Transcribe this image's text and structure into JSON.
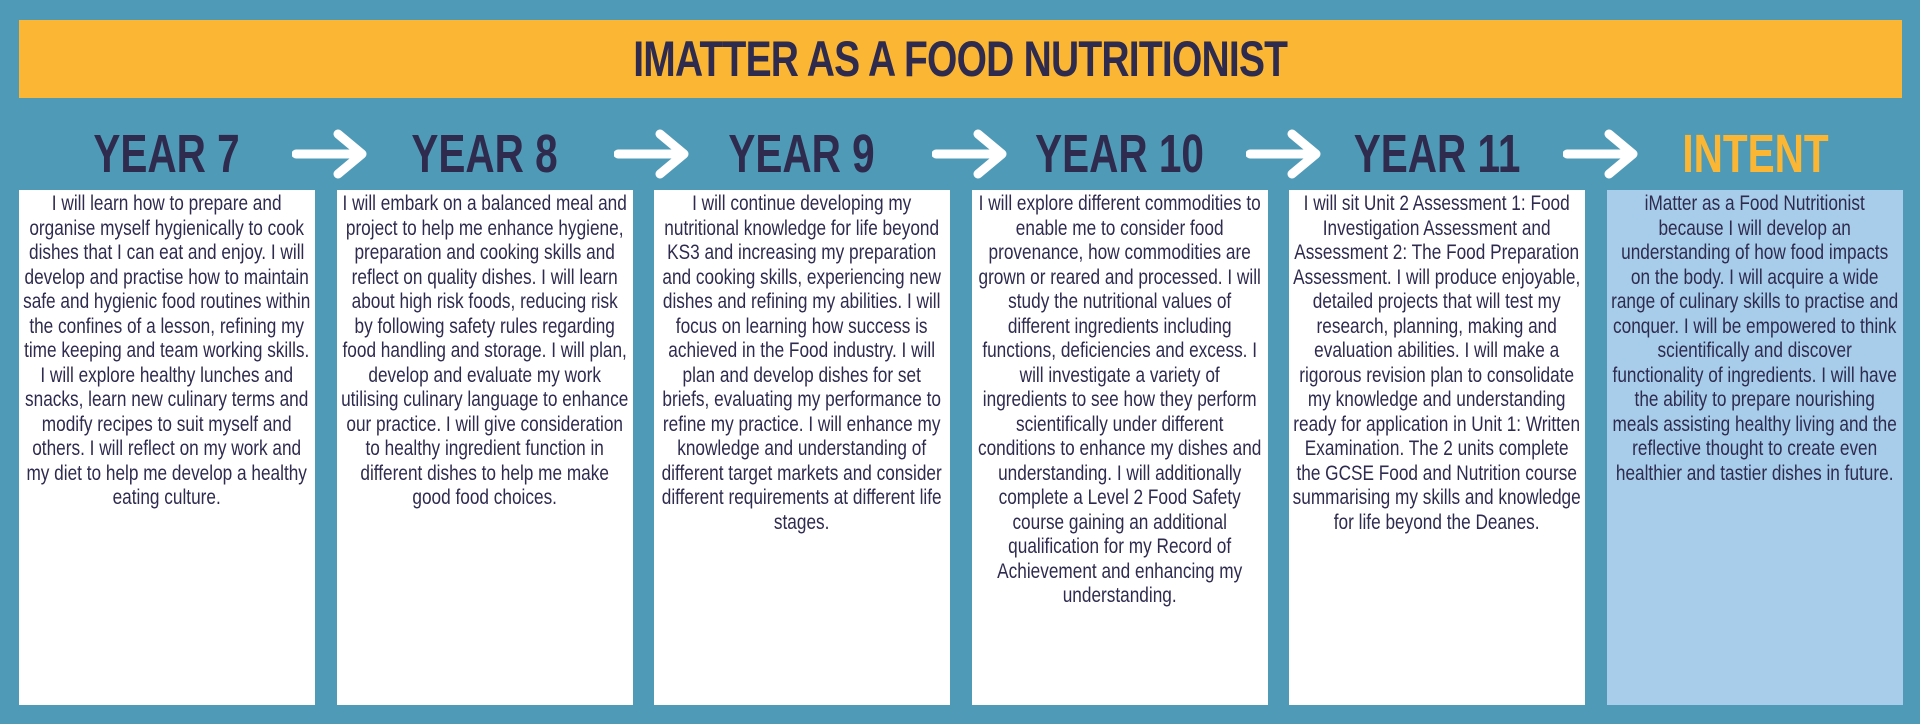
{
  "title": "IMATTER AS A FOOD NUTRITIONIST",
  "colors": {
    "background": "#4f9bb7",
    "banner": "#fbb733",
    "text": "#2f2b4f",
    "intent_card": "#a7cdea"
  },
  "columns": [
    {
      "heading": "YEAR 7",
      "text": "I will learn how to prepare and organise myself hygienically to cook dishes that I can eat and enjoy. I will develop and practise how to maintain safe and hygienic food routines within the confines of a lesson, refining my time keeping and team working skills. I will explore healthy lunches and snacks, learn new culinary terms and modify recipes to suit myself and others. I will reflect on my work and my diet to help me develop a healthy eating culture."
    },
    {
      "heading": "YEAR 8",
      "text": "I will embark on a balanced meal and project to help me enhance hygiene, preparation and cooking skills and reflect on quality dishes. I will learn about high risk foods, reducing risk by following safety rules regarding food handling and storage. I will plan, develop and evaluate my work utilising culinary language to enhance our practice.  I will give consideration to healthy ingredient function in different dishes to help me make good food choices."
    },
    {
      "heading": "YEAR 9",
      "text": "I will continue developing my nutritional knowledge for life beyond KS3 and increasing my preparation and cooking skills, experiencing new dishes and refining my abilities.  I will focus on learning how success is achieved in the Food industry. I will plan and develop dishes for set briefs, evaluating my performance to refine my practice. I will enhance my knowledge and understanding of different target markets and consider different requirements at different life stages."
    },
    {
      "heading": "YEAR 10",
      "text": "I will explore different commodities to enable me to consider food provenance, how commodities are grown or reared and processed.   I will study the nutritional values of different ingredients including functions, deficiencies and excess.  I will investigate a variety of ingredients to see how they perform scientifically under different conditions to enhance my dishes and understanding.  I will additionally complete a Level 2 Food Safety course gaining an additional qualification for my Record of Achievement and enhancing my understanding."
    },
    {
      "heading": "YEAR 11",
      "text": "I will sit Unit 2 Assessment 1: Food Investigation Assessment and Assessment 2: The Food Preparation Assessment. I will produce enjoyable, detailed projects that will test my research, planning, making and evaluation abilities.  I will make a rigorous revision plan to consolidate my knowledge and understanding ready for application in Unit 1: Written Examination. The 2 units complete the GCSE Food and Nutrition course summarising my skills and knowledge for life beyond the Deanes."
    },
    {
      "heading": "INTENT",
      "text": "iMatter as a Food Nutritionist because I will develop an understanding of how food impacts on the body.  I will acquire a wide range of culinary skills to practise and conquer. I will be empowered to think scientifically and discover functionality of ingredients. I will have the ability to prepare nourishing meals assisting healthy living and the reflective thought to create even healthier and tastier dishes in future."
    }
  ],
  "arrow_icon": "right-arrow-icon"
}
